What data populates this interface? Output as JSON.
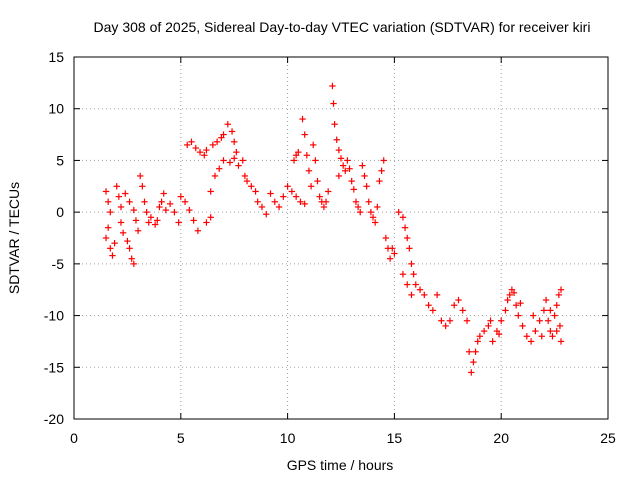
{
  "chart_data": {
    "type": "scatter",
    "title": "Day 308 of 2025, Sidereal Day-to-day VTEC variation (SDTVAR) for receiver kiri",
    "xlabel": "GPS time / hours",
    "ylabel": "SDTVAR / TECUs",
    "xlim": [
      0,
      25
    ],
    "ylim": [
      -20,
      15
    ],
    "xticks": [
      0,
      5,
      10,
      15,
      20,
      25
    ],
    "yticks": [
      15,
      10,
      5,
      0,
      -5,
      -10,
      -15,
      -20
    ],
    "xtick_labels": [
      "0",
      "5",
      "10",
      "15",
      "20",
      "25"
    ],
    "ytick_labels": [
      "15",
      "10",
      "5",
      "0",
      "-5",
      "-10",
      "-15",
      "-20"
    ],
    "grid": true,
    "marker": "+",
    "series_color": "#ff0000",
    "series": [
      {
        "name": "SDTVAR",
        "points": [
          [
            1.5,
            2.0
          ],
          [
            1.6,
            1.0
          ],
          [
            1.7,
            0.0
          ],
          [
            1.6,
            -1.5
          ],
          [
            1.5,
            -2.5
          ],
          [
            1.7,
            -3.5
          ],
          [
            1.8,
            -4.2
          ],
          [
            1.9,
            -3.0
          ],
          [
            2.0,
            2.5
          ],
          [
            2.1,
            1.5
          ],
          [
            2.2,
            0.5
          ],
          [
            2.2,
            -1.0
          ],
          [
            2.3,
            -2.0
          ],
          [
            2.5,
            -2.8
          ],
          [
            2.6,
            -3.5
          ],
          [
            2.7,
            -4.5
          ],
          [
            2.8,
            -5.0
          ],
          [
            2.4,
            1.8
          ],
          [
            2.6,
            1.0
          ],
          [
            2.8,
            0.2
          ],
          [
            2.9,
            -0.8
          ],
          [
            3.0,
            -1.8
          ],
          [
            3.1,
            3.5
          ],
          [
            3.2,
            2.5
          ],
          [
            3.3,
            1.0
          ],
          [
            3.4,
            0.0
          ],
          [
            3.5,
            -1.0
          ],
          [
            3.6,
            -0.5
          ],
          [
            3.8,
            -1.2
          ],
          [
            3.9,
            -0.8
          ],
          [
            4.0,
            0.5
          ],
          [
            4.1,
            1.0
          ],
          [
            4.2,
            1.8
          ],
          [
            4.3,
            0.2
          ],
          [
            4.5,
            0.8
          ],
          [
            4.7,
            0.0
          ],
          [
            4.9,
            -1.0
          ],
          [
            5.0,
            1.5
          ],
          [
            5.2,
            1.0
          ],
          [
            5.4,
            0.2
          ],
          [
            5.6,
            -0.8
          ],
          [
            5.8,
            -1.8
          ],
          [
            5.3,
            6.5
          ],
          [
            5.5,
            6.8
          ],
          [
            5.7,
            6.2
          ],
          [
            5.9,
            5.8
          ],
          [
            6.1,
            5.5
          ],
          [
            6.2,
            -1.0
          ],
          [
            6.4,
            -0.5
          ],
          [
            6.2,
            6.0
          ],
          [
            6.5,
            6.5
          ],
          [
            6.7,
            6.8
          ],
          [
            6.9,
            7.2
          ],
          [
            7.0,
            7.5
          ],
          [
            6.4,
            2.0
          ],
          [
            6.6,
            3.5
          ],
          [
            6.8,
            4.2
          ],
          [
            7.0,
            5.0
          ],
          [
            7.2,
            8.5
          ],
          [
            7.4,
            7.8
          ],
          [
            7.5,
            6.8
          ],
          [
            7.6,
            5.8
          ],
          [
            7.3,
            4.8
          ],
          [
            7.5,
            5.2
          ],
          [
            7.7,
            4.5
          ],
          [
            7.9,
            5.0
          ],
          [
            8.0,
            3.5
          ],
          [
            8.1,
            3.0
          ],
          [
            8.3,
            2.5
          ],
          [
            8.5,
            2.0
          ],
          [
            8.6,
            1.0
          ],
          [
            8.8,
            0.5
          ],
          [
            9.0,
            -0.2
          ],
          [
            9.2,
            1.8
          ],
          [
            9.4,
            1.0
          ],
          [
            9.6,
            0.5
          ],
          [
            9.8,
            1.5
          ],
          [
            10.0,
            2.5
          ],
          [
            10.2,
            2.0
          ],
          [
            10.4,
            1.5
          ],
          [
            10.6,
            1.0
          ],
          [
            10.8,
            0.8
          ],
          [
            10.3,
            5.0
          ],
          [
            10.4,
            5.5
          ],
          [
            10.5,
            5.8
          ],
          [
            10.7,
            9.0
          ],
          [
            10.8,
            7.5
          ],
          [
            10.9,
            5.5
          ],
          [
            11.0,
            4.0
          ],
          [
            11.1,
            2.5
          ],
          [
            11.2,
            6.5
          ],
          [
            11.3,
            5.0
          ],
          [
            11.4,
            3.0
          ],
          [
            11.5,
            1.5
          ],
          [
            11.6,
            1.0
          ],
          [
            11.7,
            0.5
          ],
          [
            11.8,
            1.0
          ],
          [
            11.9,
            2.0
          ],
          [
            12.1,
            12.2
          ],
          [
            12.15,
            10.5
          ],
          [
            12.2,
            8.5
          ],
          [
            12.3,
            7.0
          ],
          [
            12.4,
            6.0
          ],
          [
            12.5,
            5.2
          ],
          [
            12.6,
            4.5
          ],
          [
            12.4,
            3.5
          ],
          [
            12.7,
            4.0
          ],
          [
            12.8,
            5.0
          ],
          [
            12.9,
            4.2
          ],
          [
            13.0,
            3.0
          ],
          [
            13.1,
            2.2
          ],
          [
            13.2,
            1.0
          ],
          [
            13.3,
            0.5
          ],
          [
            13.4,
            0.0
          ],
          [
            13.5,
            4.5
          ],
          [
            13.6,
            3.5
          ],
          [
            13.7,
            2.5
          ],
          [
            13.8,
            1.0
          ],
          [
            13.9,
            0.0
          ],
          [
            14.0,
            -0.5
          ],
          [
            14.1,
            -1.0
          ],
          [
            14.2,
            0.5
          ],
          [
            14.3,
            3.0
          ],
          [
            14.4,
            4.0
          ],
          [
            14.5,
            5.0
          ],
          [
            14.6,
            -2.5
          ],
          [
            14.7,
            -3.5
          ],
          [
            14.8,
            -4.5
          ],
          [
            14.9,
            -3.5
          ],
          [
            15.0,
            -4.0
          ],
          [
            15.2,
            0.0
          ],
          [
            15.4,
            -0.5
          ],
          [
            15.5,
            -1.5
          ],
          [
            15.6,
            -2.5
          ],
          [
            15.7,
            -3.5
          ],
          [
            15.8,
            -5.0
          ],
          [
            15.9,
            -6.0
          ],
          [
            16.0,
            -7.0
          ],
          [
            15.4,
            -6.0
          ],
          [
            15.6,
            -7.0
          ],
          [
            15.8,
            -8.0
          ],
          [
            16.2,
            -7.5
          ],
          [
            16.4,
            -8.0
          ],
          [
            16.6,
            -9.0
          ],
          [
            16.8,
            -9.5
          ],
          [
            17.0,
            -8.0
          ],
          [
            17.2,
            -10.5
          ],
          [
            17.4,
            -11.0
          ],
          [
            17.6,
            -10.5
          ],
          [
            17.8,
            -9.0
          ],
          [
            18.0,
            -8.5
          ],
          [
            18.2,
            -9.5
          ],
          [
            18.4,
            -10.5
          ],
          [
            18.5,
            -13.5
          ],
          [
            18.6,
            -15.5
          ],
          [
            18.7,
            -14.5
          ],
          [
            18.8,
            -13.5
          ],
          [
            18.9,
            -12.5
          ],
          [
            19.0,
            -12.0
          ],
          [
            19.2,
            -11.5
          ],
          [
            19.4,
            -11.0
          ],
          [
            19.5,
            -10.5
          ],
          [
            19.6,
            -12.5
          ],
          [
            19.8,
            -11.5
          ],
          [
            20.0,
            -10.5
          ],
          [
            20.2,
            -9.5
          ],
          [
            20.3,
            -8.5
          ],
          [
            20.4,
            -8.0
          ],
          [
            20.5,
            -7.5
          ],
          [
            20.6,
            -7.8
          ],
          [
            20.7,
            -9.0
          ],
          [
            20.8,
            -10.0
          ],
          [
            21.0,
            -11.0
          ],
          [
            21.2,
            -12.0
          ],
          [
            21.4,
            -12.5
          ],
          [
            21.6,
            -11.5
          ],
          [
            21.8,
            -10.5
          ],
          [
            22.0,
            -9.5
          ],
          [
            22.1,
            -8.5
          ],
          [
            22.2,
            -10.5
          ],
          [
            22.3,
            -11.5
          ],
          [
            22.4,
            -12.0
          ],
          [
            22.5,
            -10.0
          ],
          [
            22.6,
            -9.0
          ],
          [
            22.7,
            -8.0
          ],
          [
            22.8,
            -7.5
          ],
          [
            22.75,
            -11.0
          ],
          [
            22.8,
            -12.5
          ],
          [
            22.6,
            -11.5
          ],
          [
            22.3,
            -9.5
          ],
          [
            21.9,
            -12.0
          ],
          [
            21.5,
            -10.0
          ],
          [
            20.9,
            -8.8
          ],
          [
            19.9,
            -11.8
          ]
        ]
      }
    ]
  }
}
